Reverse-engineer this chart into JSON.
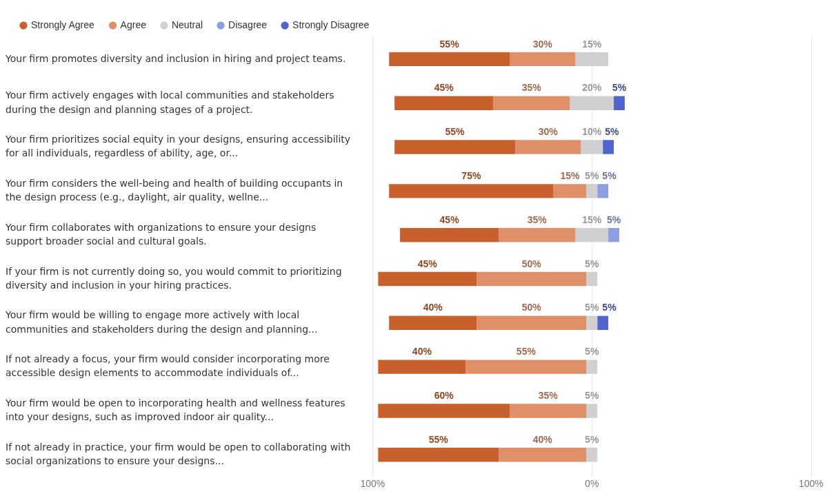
{
  "chart_data": {
    "type": "bar",
    "orientation": "horizontal",
    "categories": [
      "Your firm promotes diversity and inclusion in hiring and project teams.",
      "Your firm actively engages with local communities and stakeholders during the design and planning stages of a project.",
      "Your firm prioritizes social equity in your designs, ensuring accessibility for all individuals, regardless of ability, age, or...",
      "Your firm considers the well-being and health of building occupants in the design process (e.g., daylight, air quality, wellne...",
      "Your firm collaborates with organizations to ensure your designs support broader social and cultural goals.",
      "If your firm is not currently doing so, you would commit to prioritizing diversity and inclusion in your hiring practices.",
      "Your firm would be willing to engage more actively with local communities and stakeholders during the design and planning...",
      "If not already a focus, your firm would consider incorporating more accessible design elements to accommodate individuals of...",
      "Your firm would be open to incorporating health and wellness features into your designs, such as improved indoor air quality...",
      "If not already in practice, your firm would be open to collaborating with social organizations to ensure your designs..."
    ],
    "series": [
      {
        "name": "Strongly Agree",
        "color": "#c8602c",
        "values": [
          55,
          45,
          55,
          75,
          45,
          45,
          40,
          40,
          60,
          55
        ],
        "base": [
          -92.5,
          -90,
          -90,
          -92.5,
          -87.5,
          -97.5,
          -92.5,
          -97.5,
          -97.5,
          -97.5
        ],
        "value_labels": [
          "55%",
          "45%",
          "55%",
          "75%",
          "45%",
          "45%",
          "40%",
          "40%",
          "60%",
          "55%"
        ]
      },
      {
        "name": "Agree",
        "color": "#df9068",
        "values": [
          30,
          35,
          30,
          15,
          35,
          50,
          50,
          55,
          35,
          40
        ],
        "base": [
          -37.5,
          -45,
          -35,
          -17.5,
          -42.5,
          -52.5,
          -52.5,
          -57.5,
          -37.5,
          -42.5
        ],
        "value_labels": [
          "30%",
          "35%",
          "30%",
          "15%",
          "35%",
          "50%",
          "50%",
          "55%",
          "35%",
          "40%"
        ]
      },
      {
        "name": "Neutral",
        "color": "#d0d0d0",
        "values": [
          15,
          20,
          10,
          5,
          15,
          5,
          5,
          5,
          5,
          5
        ],
        "base": [
          -7.5,
          -10,
          -5,
          -2.5,
          -7.5,
          -2.5,
          -2.5,
          -2.5,
          -2.5,
          -2.5
        ],
        "value_labels": [
          "15%",
          "20%",
          "10%",
          "5%",
          "15%",
          "5%",
          "5%",
          "5%",
          "5%",
          "5%"
        ]
      },
      {
        "name": "Disagree",
        "color": "#8c9fe0",
        "values": [
          null,
          null,
          null,
          5,
          5,
          null,
          null,
          null,
          null,
          null
        ],
        "base": [
          null,
          null,
          null,
          2.5,
          7.5,
          null,
          null,
          null,
          null,
          null
        ],
        "value_labels": [
          null,
          null,
          null,
          "5%",
          "5%",
          null,
          null,
          null,
          null,
          null
        ]
      },
      {
        "name": "Strongly Disagree",
        "color": "#5066cc",
        "values": [
          null,
          5,
          5,
          null,
          null,
          null,
          5,
          null,
          null,
          null
        ],
        "base": [
          null,
          10,
          5,
          null,
          null,
          null,
          2.5,
          null,
          null,
          null
        ],
        "value_labels": [
          null,
          "5%",
          "5%",
          null,
          null,
          null,
          "5%",
          null,
          null,
          null
        ]
      }
    ],
    "xlim": [
      -100,
      100
    ],
    "xticks": [
      {
        "value": -100,
        "label": "100%"
      },
      {
        "value": 0,
        "label": "0%"
      },
      {
        "value": 100,
        "label": "100%"
      }
    ],
    "grid": "x",
    "legend": "top left"
  }
}
